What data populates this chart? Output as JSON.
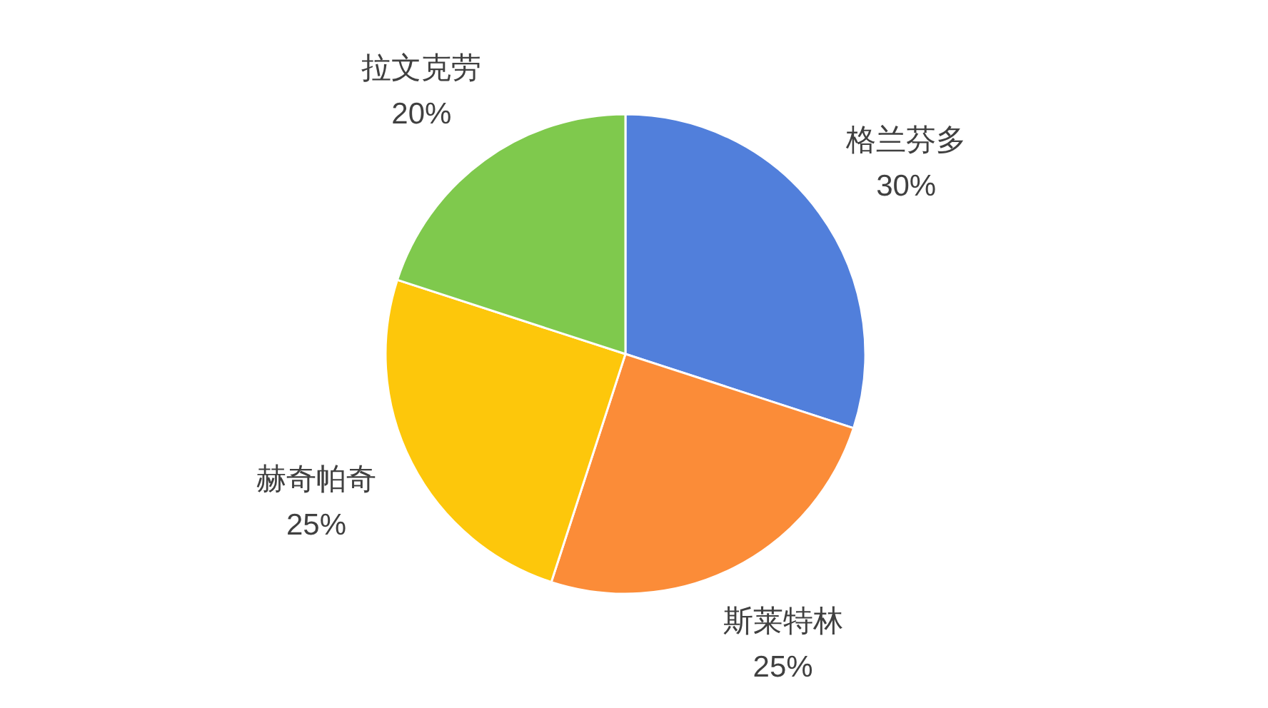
{
  "chart_data": {
    "type": "pie",
    "categories": [
      "格兰芬多",
      "斯莱特林",
      "赫奇帕奇",
      "拉文克劳"
    ],
    "values": [
      30,
      25,
      25,
      20
    ],
    "colors": [
      "#517fdb",
      "#fb8c38",
      "#fdc70b",
      "#7fc94d"
    ],
    "value_labels": [
      "30%",
      "25%",
      "25%",
      "20%"
    ]
  }
}
